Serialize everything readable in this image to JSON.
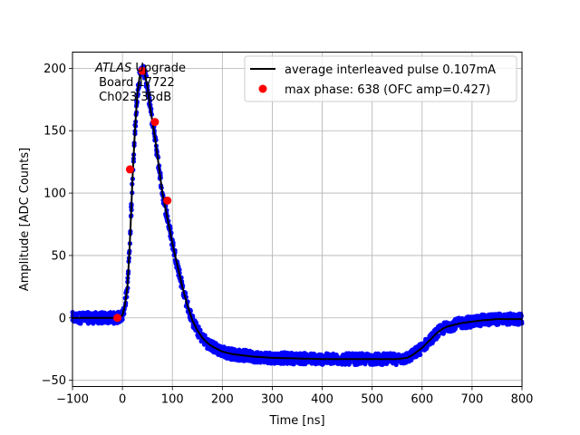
{
  "chart_data": {
    "type": "scatter",
    "xlabel": "Time [ns]",
    "ylabel": "Amplitude [ADC Counts]",
    "xlim": [
      -100,
      800
    ],
    "ylim": [
      -55,
      213
    ],
    "x_ticks": [
      -100,
      0,
      100,
      200,
      300,
      400,
      500,
      600,
      700,
      800
    ],
    "y_ticks": [
      -50,
      0,
      50,
      100,
      150,
      200
    ],
    "grid": true,
    "legend_placement": "top-right",
    "annotation": {
      "line1_italic": "ATLAS",
      "line1_rest": " Upgrade",
      "line2": " Board 17722",
      "line3": " Ch023 35dB"
    },
    "colors": {
      "samples": "#0000ff",
      "average": "#000000",
      "max_phase": "#ff0000",
      "grid": "#b0b0b0"
    },
    "series": [
      {
        "name": "average interleaved pulse 0.107mA",
        "kind": "line",
        "x": [
          -100,
          -40,
          -20,
          -10,
          0,
          5,
          10,
          15,
          20,
          25,
          30,
          35,
          40,
          45,
          50,
          55,
          60,
          65,
          70,
          75,
          80,
          90,
          100,
          110,
          120,
          130,
          140,
          150,
          160,
          170,
          180,
          190,
          200,
          220,
          240,
          260,
          280,
          300,
          350,
          400,
          450,
          500,
          550,
          570,
          580,
          590,
          600,
          610,
          620,
          630,
          640,
          650,
          660,
          680,
          700,
          720,
          750,
          800
        ],
        "y": [
          0,
          0,
          0,
          0,
          2,
          10,
          25,
          60,
          110,
          150,
          180,
          195,
          200,
          195,
          185,
          170,
          157,
          145,
          130,
          115,
          100,
          80,
          60,
          42,
          25,
          10,
          -2,
          -10,
          -16,
          -20,
          -23,
          -25,
          -27,
          -29,
          -30,
          -31,
          -31.5,
          -32,
          -32.5,
          -33,
          -33,
          -33,
          -33,
          -32,
          -30,
          -27,
          -24,
          -20,
          -16,
          -12,
          -9,
          -7,
          -6,
          -4,
          -3,
          -2,
          -1,
          -1
        ]
      },
      {
        "name": "max phase: 638 (OFC amp=0.427)",
        "kind": "points",
        "x": [
          -10,
          15,
          40,
          65,
          90
        ],
        "y": [
          0,
          119,
          198,
          157,
          94
        ]
      }
    ]
  }
}
